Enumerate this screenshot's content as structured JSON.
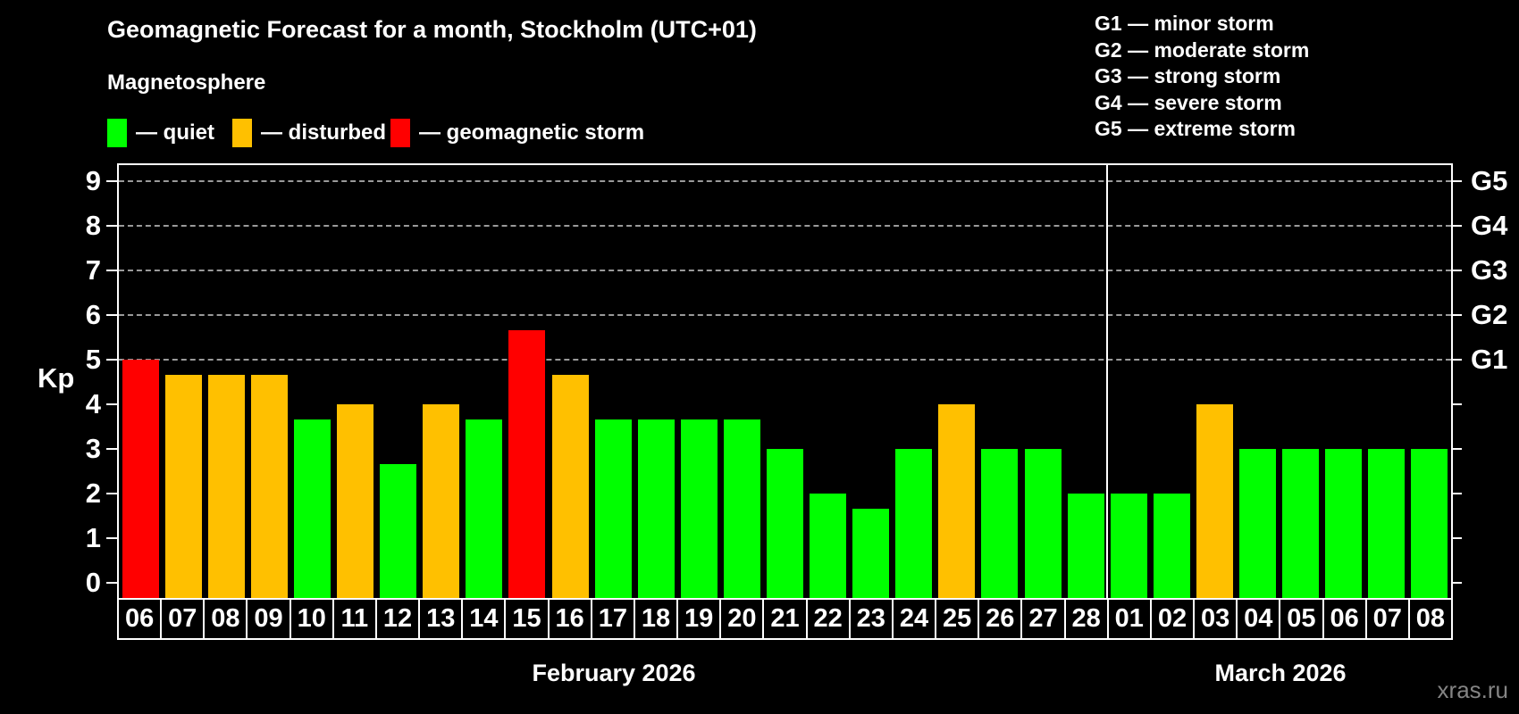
{
  "title": "Geomagnetic Forecast for a month, Stockholm (UTC+01)",
  "subtitle": "Magnetosphere",
  "legend": {
    "items": [
      {
        "status": "quiet",
        "label": "— quiet",
        "color": "#00ff00"
      },
      {
        "status": "disturbed",
        "label": "— disturbed",
        "color": "#ffc000"
      },
      {
        "status": "storm",
        "label": "— geomagnetic storm",
        "color": "#ff0000"
      }
    ]
  },
  "g_legend": {
    "items": [
      {
        "label": "G1 — minor storm"
      },
      {
        "label": "G2 — moderate storm"
      },
      {
        "label": "G3 — strong storm"
      },
      {
        "label": "G4 — severe storm"
      },
      {
        "label": "G5 — extreme storm"
      }
    ]
  },
  "status_colors": {
    "quiet": "#00ff00",
    "disturbed": "#ffc000",
    "storm": "#ff0000"
  },
  "watermark": "xras.ru",
  "chart_data": {
    "type": "bar",
    "title": "Geomagnetic Forecast for a month, Stockholm (UTC+01)",
    "xlabel": "",
    "ylabel": "Kp",
    "ylim": [
      0,
      9
    ],
    "y_ticks": [
      0,
      1,
      2,
      3,
      4,
      5,
      6,
      7,
      8,
      9
    ],
    "gridlines_kp": [
      5,
      6,
      7,
      8,
      9
    ],
    "grid_style": "dashed gray, only at Kp 5-9 (G1-G5 levels)",
    "right_axis_ticks": [
      {
        "kp": 5,
        "label": "G1"
      },
      {
        "kp": 6,
        "label": "G2"
      },
      {
        "kp": 7,
        "label": "G3"
      },
      {
        "kp": 8,
        "label": "G4"
      },
      {
        "kp": 9,
        "label": "G5"
      }
    ],
    "categories": [
      "06",
      "07",
      "08",
      "09",
      "10",
      "11",
      "12",
      "13",
      "14",
      "15",
      "16",
      "17",
      "18",
      "19",
      "20",
      "21",
      "22",
      "23",
      "24",
      "25",
      "26",
      "27",
      "28",
      "01",
      "02",
      "03",
      "04",
      "05",
      "06",
      "07",
      "08"
    ],
    "values": [
      5,
      4.67,
      4.67,
      4.67,
      3.67,
      4,
      2.67,
      4,
      3.67,
      5.67,
      4.67,
      3.67,
      3.67,
      3.67,
      3.67,
      3,
      2,
      1.67,
      3,
      4,
      3,
      3,
      2,
      2,
      2,
      4,
      3,
      3,
      3,
      3,
      3
    ],
    "statuses": [
      "storm",
      "disturbed",
      "disturbed",
      "disturbed",
      "quiet",
      "disturbed",
      "quiet",
      "disturbed",
      "quiet",
      "storm",
      "disturbed",
      "quiet",
      "quiet",
      "quiet",
      "quiet",
      "quiet",
      "quiet",
      "quiet",
      "quiet",
      "disturbed",
      "quiet",
      "quiet",
      "quiet",
      "quiet",
      "quiet",
      "disturbed",
      "quiet",
      "quiet",
      "quiet",
      "quiet",
      "quiet"
    ],
    "month_separator_after_index": 22,
    "months": [
      {
        "label": "February 2026",
        "day_count": 23
      },
      {
        "label": "March 2026",
        "day_count": 8
      }
    ]
  }
}
